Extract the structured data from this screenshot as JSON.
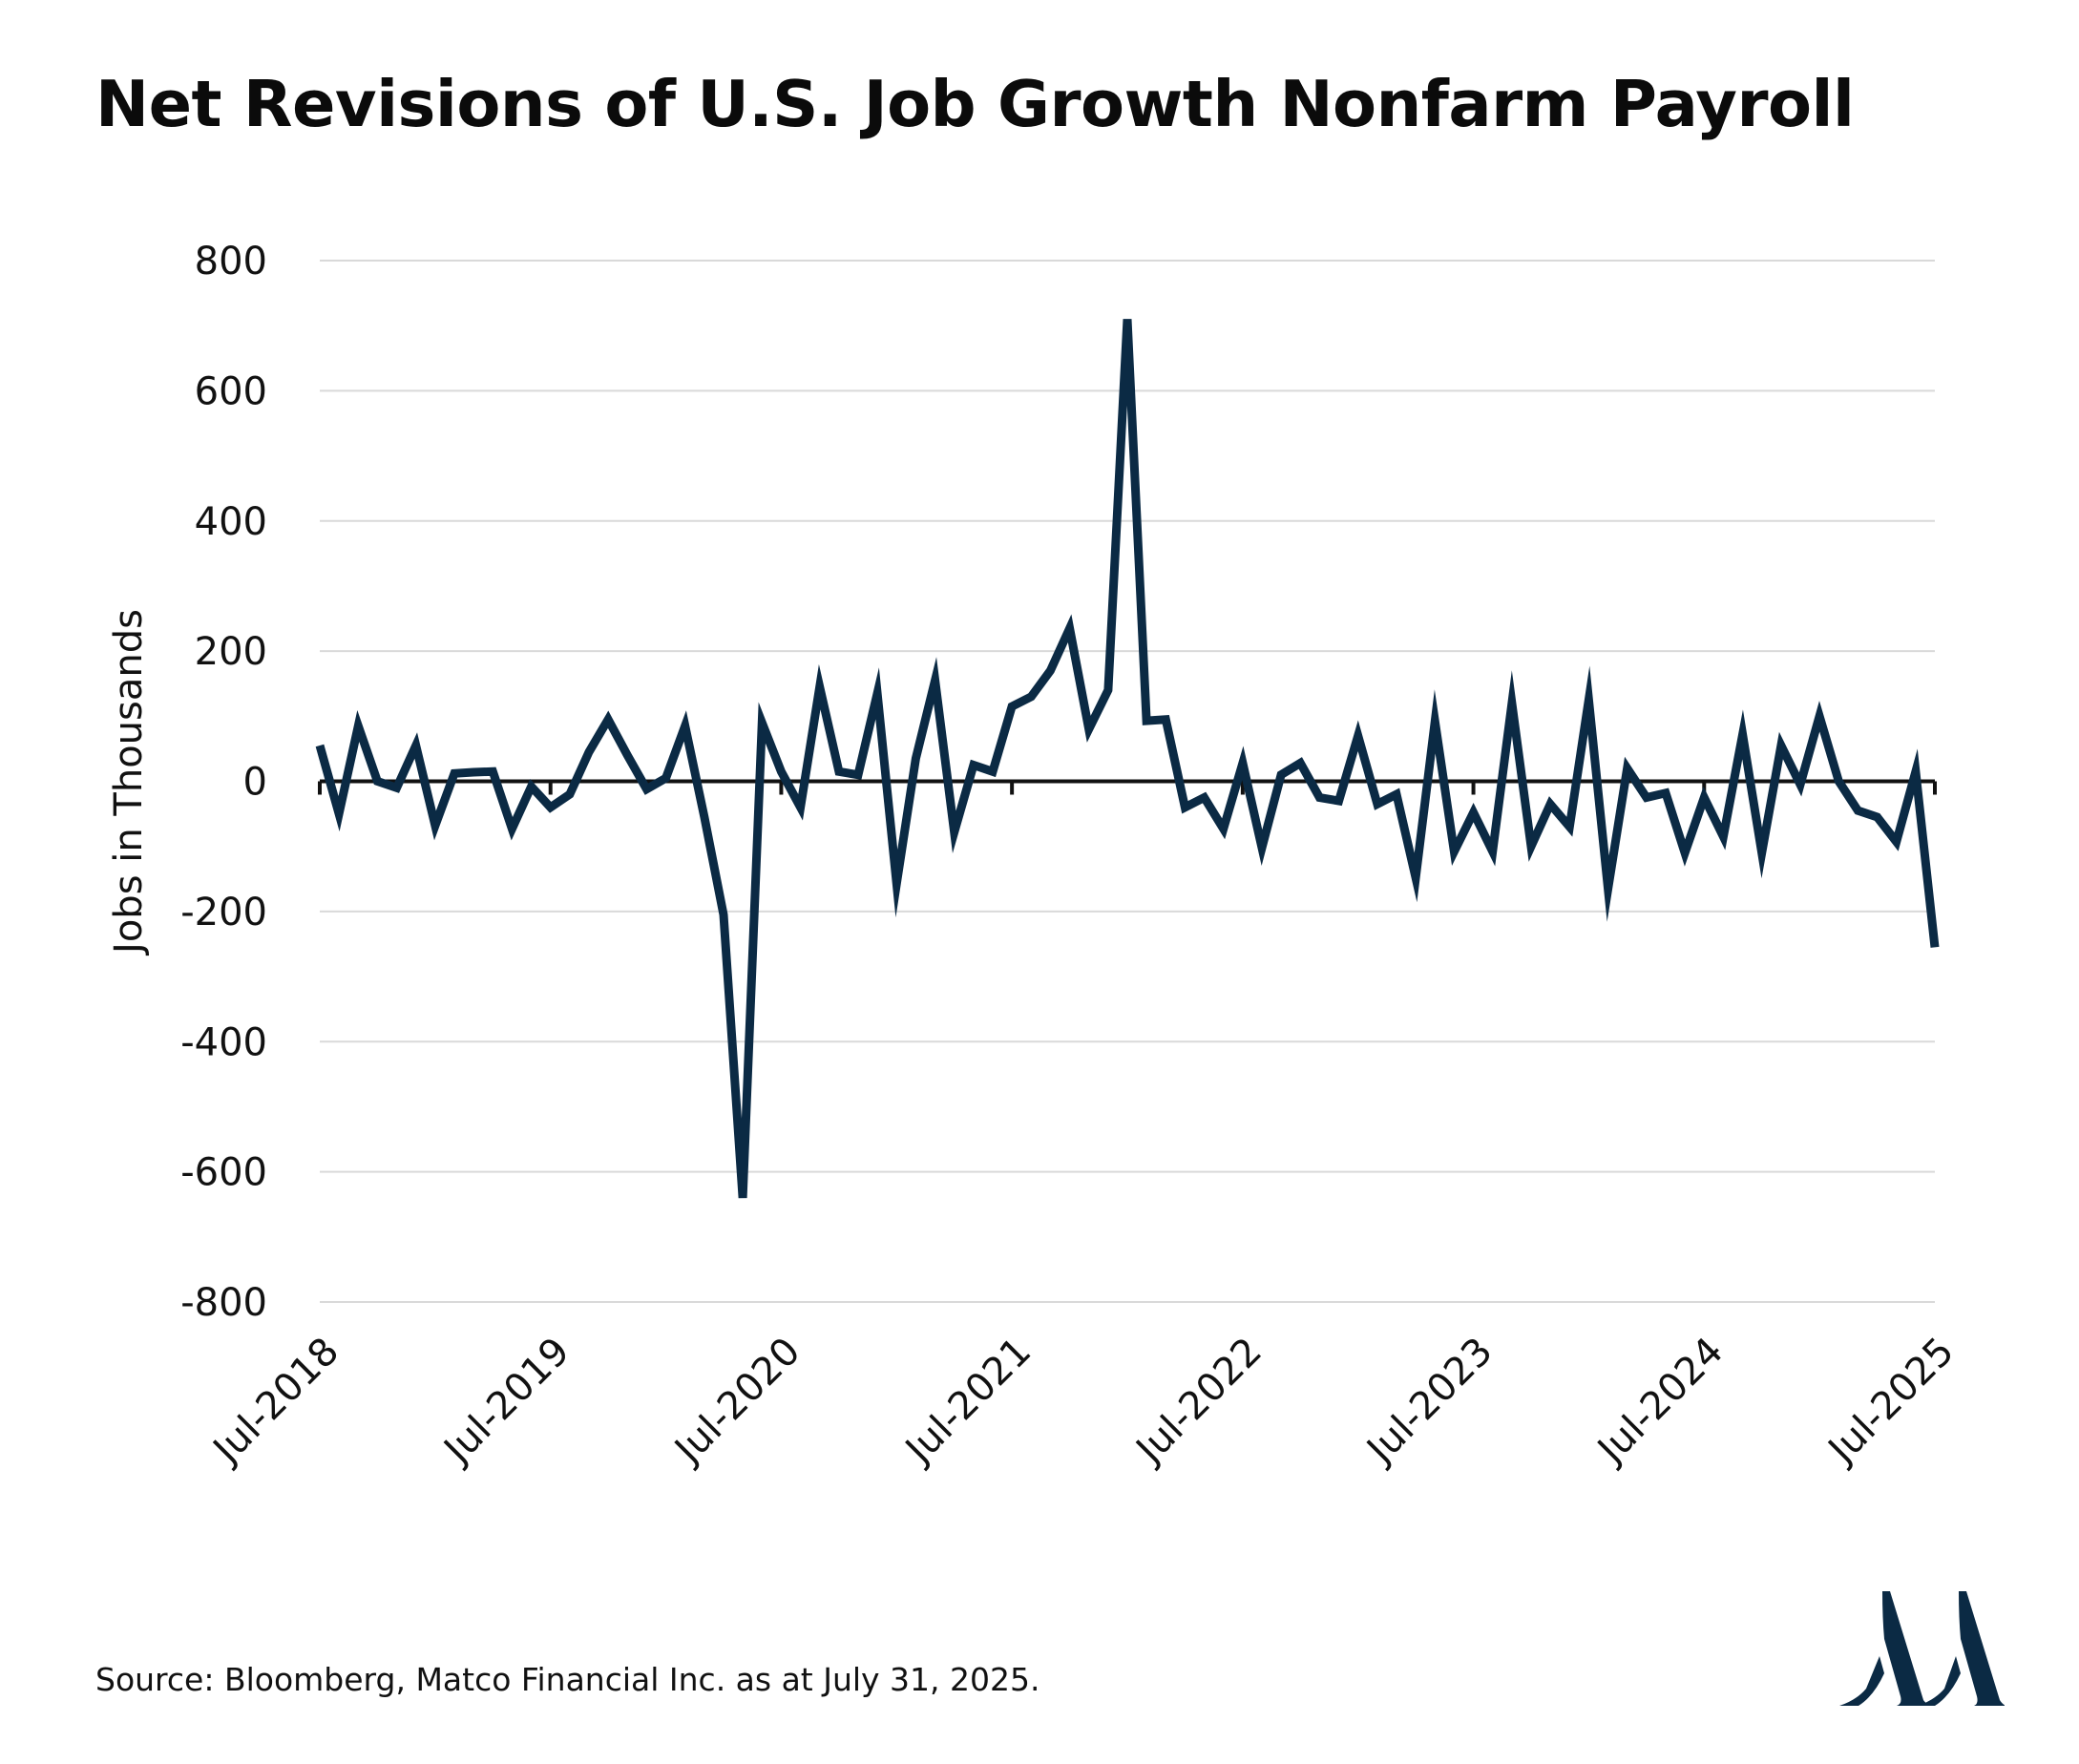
{
  "title": "Net Revisions of U.S. Job Growth Nonfarm Payroll",
  "source": "Source: Bloomberg, Matco Financial Inc. as at July 31, 2025.",
  "colors": {
    "line": "#0b2a44",
    "grid": "#d9d9d9",
    "zero_axis": "#111111",
    "logo": "#0b2a44"
  },
  "logo_icon": "matco-double-peak-logo",
  "chart_data": {
    "type": "line",
    "title": "Net Revisions of U.S. Job Growth Nonfarm Payroll",
    "xlabel": "",
    "ylabel": "Jobs in Thousands",
    "ylim": [
      -800,
      800
    ],
    "yticks": [
      800,
      600,
      400,
      200,
      0,
      -200,
      -400,
      -600,
      -800
    ],
    "ytick_labels": [
      "800",
      "600",
      "400",
      "200",
      "0",
      "-200",
      "-400",
      "-600",
      "-800"
    ],
    "xtick_labels": [
      "Jul-2018",
      "Jul-2019",
      "Jul-2020",
      "Jul-2021",
      "Jul-2022",
      "Jul-2023",
      "Jul-2024",
      "Jul-2025"
    ],
    "xtick_months": [
      "2018-07",
      "2019-07",
      "2020-07",
      "2021-07",
      "2022-07",
      "2023-07",
      "2024-07",
      "2025-07"
    ],
    "grid": true,
    "legend": "none",
    "series": [
      {
        "x": [
          "2018-07",
          "2018-08",
          "2018-09",
          "2018-10",
          "2018-11",
          "2018-12",
          "2019-01",
          "2019-02",
          "2019-03",
          "2019-04",
          "2019-05",
          "2019-06",
          "2019-07",
          "2019-08",
          "2019-09",
          "2019-10",
          "2019-11",
          "2019-12",
          "2020-01",
          "2020-02",
          "2020-03",
          "2020-04",
          "2020-05",
          "2020-06",
          "2020-07",
          "2020-08",
          "2020-09",
          "2020-10",
          "2020-11",
          "2020-12",
          "2021-01",
          "2021-02",
          "2021-03",
          "2021-04",
          "2021-05",
          "2021-06",
          "2021-07",
          "2021-08",
          "2021-09",
          "2021-10",
          "2021-11",
          "2021-12",
          "2022-01",
          "2022-02",
          "2022-03",
          "2022-04",
          "2022-05",
          "2022-06",
          "2022-07",
          "2022-08",
          "2022-09",
          "2022-10",
          "2022-11",
          "2022-12",
          "2023-01",
          "2023-02",
          "2023-03",
          "2023-04",
          "2023-05",
          "2023-06",
          "2023-07",
          "2023-08",
          "2023-09",
          "2023-10",
          "2023-11",
          "2023-12",
          "2024-01",
          "2024-02",
          "2024-03",
          "2024-04",
          "2024-05",
          "2024-06",
          "2024-07",
          "2024-08",
          "2024-09",
          "2024-10",
          "2024-11",
          "2024-12",
          "2025-01",
          "2025-02",
          "2025-03",
          "2025-04",
          "2025-05",
          "2025-06",
          "2025-07"
        ],
        "y": [
          55,
          -50,
          85,
          0,
          -10,
          55,
          -68,
          12,
          14,
          15,
          -73,
          -8,
          -40,
          -20,
          45,
          95,
          40,
          -12,
          5,
          85,
          -55,
          -205,
          -640,
          90,
          15,
          -40,
          145,
          15,
          10,
          135,
          -157,
          35,
          155,
          -78,
          25,
          15,
          115,
          130,
          170,
          235,
          80,
          140,
          710,
          93,
          95,
          -40,
          -25,
          -73,
          28,
          -102,
          10,
          28,
          -25,
          -30,
          70,
          -35,
          -20,
          -148,
          92,
          -108,
          -48,
          -108,
          120,
          -100,
          -35,
          -70,
          125,
          -165,
          20,
          -25,
          -18,
          -110,
          -25,
          -85,
          72,
          -110,
          55,
          -5,
          100,
          0,
          -45,
          -55,
          -93,
          15,
          -255
        ]
      }
    ]
  }
}
